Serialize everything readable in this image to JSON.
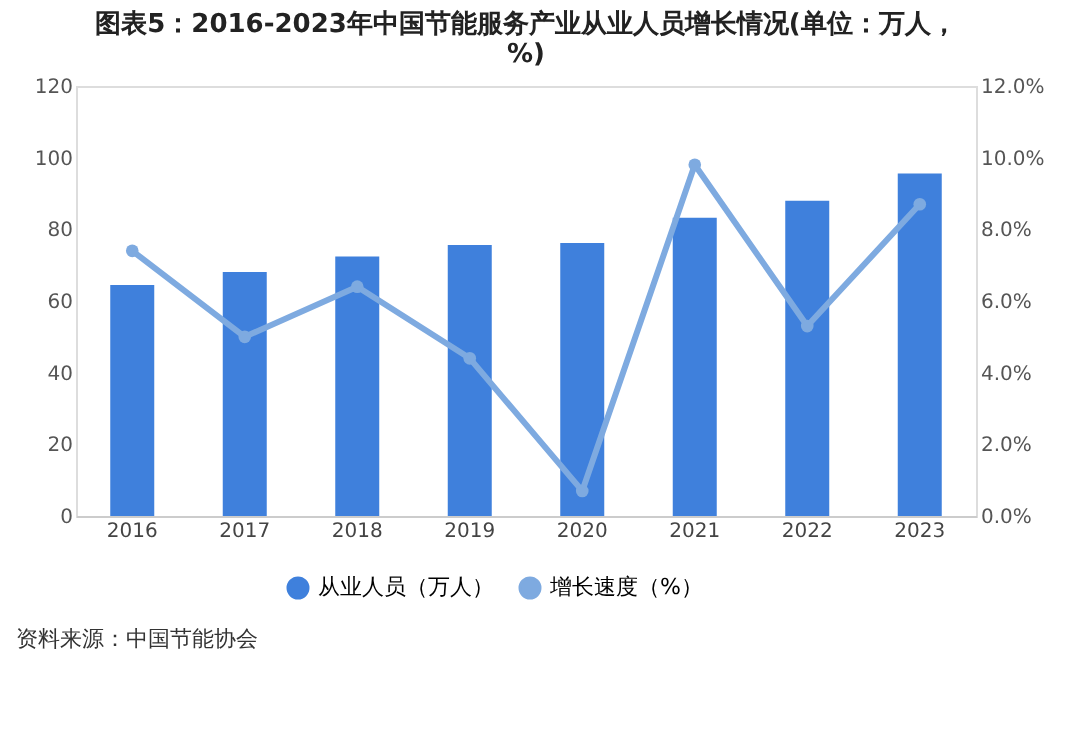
{
  "chart_data": {
    "type": "bar",
    "title": "图表5：2016-2023年中国节能服务产业从业人员增长情况(单位：万人，%)",
    "categories": [
      "2016",
      "2017",
      "2018",
      "2019",
      "2020",
      "2021",
      "2022",
      "2023"
    ],
    "series": [
      {
        "name": "从业人员（万人）",
        "color": "#3f80dc",
        "values": [
          64.5,
          68.1,
          72.4,
          75.6,
          76.2,
          83.2,
          88.0,
          95.6
        ]
      },
      {
        "name": "增长速度（%）",
        "type": "line",
        "axis": "y2",
        "color": "#7eaae0",
        "values": [
          7.4,
          5.0,
          6.4,
          4.4,
          0.7,
          9.8,
          5.3,
          8.7
        ]
      }
    ],
    "ylim": [
      0,
      120
    ],
    "yticks": [
      0,
      20,
      40,
      60,
      80,
      100,
      120
    ],
    "y2lim": [
      0,
      12
    ],
    "y2ticks": [
      {
        "value": 0,
        "label": "0.0%"
      },
      {
        "value": 2,
        "label": "2.0%"
      },
      {
        "value": 4,
        "label": "4.0%"
      },
      {
        "value": 6,
        "label": "6.0%"
      },
      {
        "value": 8,
        "label": "8.0%"
      },
      {
        "value": 10,
        "label": "10.0%"
      },
      {
        "value": 12,
        "label": "12.0%"
      }
    ],
    "grid": false,
    "legend": "bottom",
    "marker": "circle",
    "line_style": "solid",
    "annotations": [
      "资料来源：中国节能协会"
    ]
  }
}
